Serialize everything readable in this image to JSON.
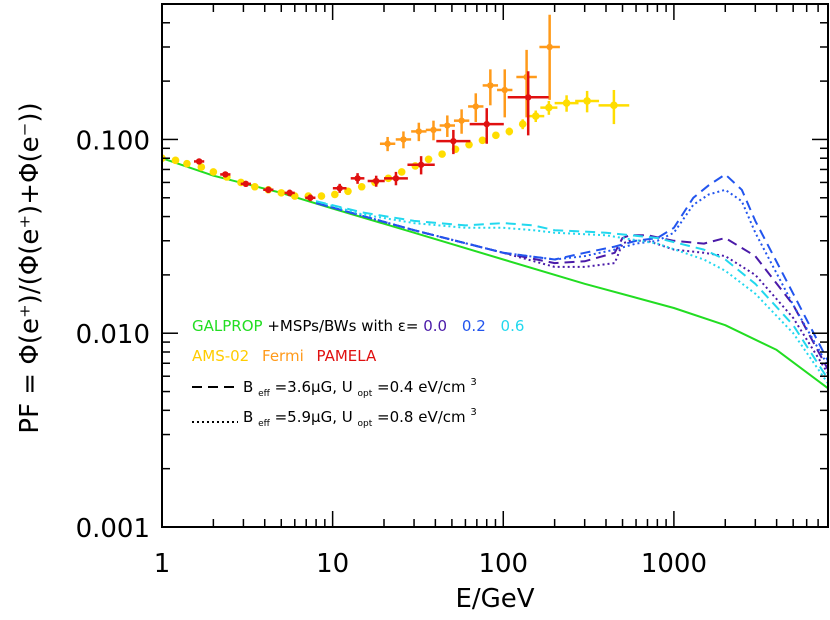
{
  "chart_data": {
    "type": "scatter",
    "xscale": "log",
    "yscale": "log",
    "xlim": [
      1,
      8000
    ],
    "ylim": [
      0.001,
      0.5
    ],
    "xlabel": "E/GeV",
    "ylabel": "PF = Φ(e⁺)/(Φ(e⁺)+Φ(e⁻))",
    "xticks": [
      {
        "value": 1,
        "label": "1"
      },
      {
        "value": 10,
        "label": "10"
      },
      {
        "value": 100,
        "label": "100"
      },
      {
        "value": 1000,
        "label": "1000"
      }
    ],
    "yticks": [
      {
        "value": 0.001,
        "label": "0.001"
      },
      {
        "value": 0.01,
        "label": "0.010"
      },
      {
        "value": 0.1,
        "label": "0.100"
      }
    ],
    "legend": {
      "line1": {
        "galprop": "GALPROP",
        "mid": "+MSPs/BWs with ε=",
        "eps0": "0.0",
        "eps2": "0.2",
        "eps6": "0.6"
      },
      "line2": {
        "ams": "AMS-02",
        "fermi": "Fermi",
        "pamela": "PAMELA"
      },
      "line3": {
        "b_label": "B",
        "b_sub": "eff",
        "b_val": "=3.6μG, U",
        "u_sub": "opt",
        "u_val": "=0.4 eV/cm",
        "u_sup": "3"
      },
      "line4": {
        "b_label": "B",
        "b_sub": "eff",
        "b_val": "=5.9μG, U",
        "u_sub": "opt",
        "u_val": "=0.8 eV/cm",
        "u_sup": "3"
      }
    },
    "series": [
      {
        "name": "GALPROP",
        "style": "solid",
        "color": "#22dd22",
        "x": [
          1,
          2,
          5,
          10,
          30,
          100,
          300,
          1000,
          2000,
          4000,
          8000
        ],
        "y": [
          0.08,
          0.065,
          0.053,
          0.044,
          0.033,
          0.024,
          0.018,
          0.0135,
          0.011,
          0.0082,
          0.0052
        ]
      },
      {
        "name": "eps=0.0, Beff=3.6uG, Uopt=0.4",
        "style": "dashed",
        "color": "#4a1aa8",
        "x": [
          8,
          30,
          100,
          200,
          300,
          450,
          500,
          550,
          700,
          1000,
          1500,
          2000,
          3000,
          5000,
          8000
        ],
        "y": [
          0.047,
          0.034,
          0.026,
          0.023,
          0.0235,
          0.026,
          0.031,
          0.032,
          0.032,
          0.03,
          0.029,
          0.031,
          0.025,
          0.014,
          0.0065
        ]
      },
      {
        "name": "eps=0.0, Beff=5.9uG, Uopt=0.8",
        "style": "dotted",
        "color": "#4a1aa8",
        "x": [
          8,
          30,
          100,
          200,
          300,
          450,
          500,
          550,
          700,
          1000,
          1500,
          2000,
          3000,
          5000,
          8000
        ],
        "y": [
          0.047,
          0.034,
          0.026,
          0.022,
          0.022,
          0.023,
          0.029,
          0.03,
          0.03,
          0.027,
          0.026,
          0.025,
          0.02,
          0.012,
          0.0062
        ]
      },
      {
        "name": "eps=0.2, Beff=3.6uG, Uopt=0.4",
        "style": "dashed",
        "color": "#2255ee",
        "x": [
          8,
          30,
          100,
          200,
          300,
          450,
          600,
          800,
          1000,
          1300,
          1600,
          2000,
          2500,
          3000,
          5000,
          8000
        ],
        "y": [
          0.047,
          0.034,
          0.026,
          0.024,
          0.026,
          0.028,
          0.03,
          0.031,
          0.035,
          0.05,
          0.058,
          0.066,
          0.055,
          0.038,
          0.016,
          0.0072
        ]
      },
      {
        "name": "eps=0.2, Beff=5.9uG, Uopt=0.8",
        "style": "dotted",
        "color": "#2255ee",
        "x": [
          8,
          30,
          100,
          200,
          300,
          450,
          600,
          800,
          1000,
          1300,
          1600,
          2000,
          2500,
          3000,
          5000,
          8000
        ],
        "y": [
          0.047,
          0.034,
          0.026,
          0.024,
          0.025,
          0.027,
          0.029,
          0.03,
          0.033,
          0.046,
          0.052,
          0.055,
          0.048,
          0.033,
          0.014,
          0.0068
        ]
      },
      {
        "name": "eps=0.6, Beff=3.6uG, Uopt=0.4",
        "style": "dashed",
        "color": "#22d8ee",
        "x": [
          8,
          15,
          30,
          60,
          100,
          150,
          200,
          400,
          800,
          1500,
          2000,
          3000,
          5000,
          8000
        ],
        "y": [
          0.048,
          0.042,
          0.038,
          0.036,
          0.037,
          0.036,
          0.034,
          0.033,
          0.031,
          0.027,
          0.024,
          0.018,
          0.011,
          0.0058
        ]
      },
      {
        "name": "eps=0.6, Beff=5.9uG, Uopt=0.8",
        "style": "dotted",
        "color": "#22d8ee",
        "x": [
          8,
          15,
          30,
          60,
          100,
          150,
          200,
          400,
          800,
          1500,
          2000,
          3000,
          5000,
          8000
        ],
        "y": [
          0.048,
          0.041,
          0.037,
          0.035,
          0.035,
          0.034,
          0.033,
          0.032,
          0.029,
          0.024,
          0.021,
          0.016,
          0.01,
          0.0055
        ]
      },
      {
        "name": "AMS-02",
        "style": "points",
        "color": "#ffdd00",
        "x": [
          1.0,
          1.2,
          1.4,
          1.7,
          2.0,
          2.4,
          2.9,
          3.5,
          4.2,
          5.0,
          6.0,
          7.2,
          8.6,
          10.3,
          12.3,
          14.8,
          17.7,
          21.2,
          25.4,
          30.5,
          36.5,
          43.8,
          52.5,
          63.0,
          75.5,
          90.5,
          108.5,
          130,
          155,
          185,
          235,
          310,
          445
        ],
        "y": [
          0.08,
          0.078,
          0.075,
          0.072,
          0.068,
          0.064,
          0.06,
          0.057,
          0.055,
          0.053,
          0.051,
          0.051,
          0.051,
          0.052,
          0.054,
          0.057,
          0.06,
          0.063,
          0.068,
          0.073,
          0.079,
          0.084,
          0.089,
          0.094,
          0.099,
          0.105,
          0.11,
          0.12,
          0.132,
          0.146,
          0.154,
          0.158,
          0.15
        ],
        "xerr_log": [
          0,
          0,
          0,
          0,
          0,
          0,
          0,
          0,
          0,
          0,
          0,
          0,
          0,
          0,
          0,
          0,
          0,
          0,
          0,
          0,
          0,
          0,
          0,
          0,
          0,
          0,
          0,
          0,
          0.05,
          0.05,
          0.07,
          0.07,
          0.09
        ],
        "yerr": [
          0.001,
          0.001,
          0.001,
          0.001,
          0.001,
          0.001,
          0.001,
          0.001,
          0.001,
          0.001,
          0.001,
          0.001,
          0.001,
          0.001,
          0.001,
          0.001,
          0.001,
          0.001,
          0.001,
          0.002,
          0.002,
          0.002,
          0.003,
          0.003,
          0.004,
          0.004,
          0.005,
          0.007,
          0.009,
          0.012,
          0.015,
          0.02,
          0.03
        ]
      },
      {
        "name": "Fermi",
        "style": "points",
        "color": "#ff9a1a",
        "x": [
          21,
          26,
          32,
          39,
          47,
          57,
          69,
          84,
          102,
          137,
          187
        ],
        "y": [
          0.095,
          0.1,
          0.11,
          0.112,
          0.118,
          0.125,
          0.148,
          0.19,
          0.18,
          0.21,
          0.3
        ],
        "xerr_log": [
          0.045,
          0.045,
          0.045,
          0.045,
          0.045,
          0.045,
          0.045,
          0.045,
          0.045,
          0.06,
          0.06
        ],
        "yerr": [
          0.008,
          0.01,
          0.012,
          0.013,
          0.015,
          0.018,
          0.025,
          0.04,
          0.05,
          0.08,
          0.14
        ]
      },
      {
        "name": "PAMELA",
        "style": "points",
        "color": "#e01010",
        "x": [
          1.65,
          2.35,
          3.1,
          4.2,
          5.6,
          7.4,
          11.0,
          14.0,
          18.0,
          23.5,
          33.0,
          51.0,
          80.0,
          140.0
        ],
        "y": [
          0.077,
          0.066,
          0.059,
          0.055,
          0.053,
          0.05,
          0.056,
          0.063,
          0.061,
          0.063,
          0.074,
          0.098,
          0.12,
          0.165
        ],
        "xerr_log": [
          0.03,
          0.03,
          0.03,
          0.03,
          0.03,
          0.03,
          0.04,
          0.04,
          0.05,
          0.07,
          0.08,
          0.1,
          0.1,
          0.12
        ],
        "yerr": [
          0.002,
          0.002,
          0.002,
          0.002,
          0.002,
          0.002,
          0.003,
          0.004,
          0.004,
          0.005,
          0.008,
          0.014,
          0.025,
          0.06
        ]
      }
    ]
  }
}
